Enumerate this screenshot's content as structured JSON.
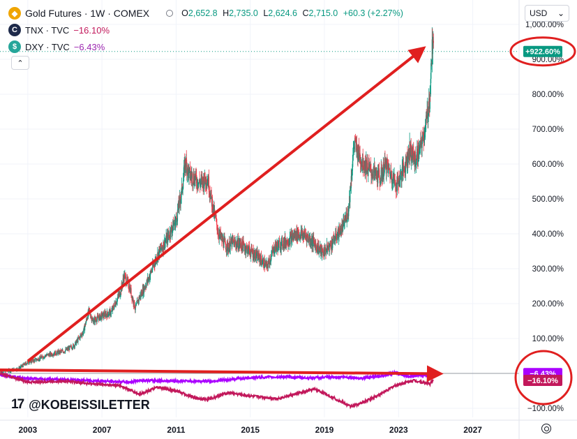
{
  "header": {
    "title": "Gold Futures · 1W · COMEX",
    "ohlc": [
      {
        "key": "O",
        "value": "2,652.8"
      },
      {
        "key": "H",
        "value": "2,735.0"
      },
      {
        "key": "L",
        "value": "2,624.6"
      },
      {
        "key": "C",
        "value": "2,715.0"
      }
    ],
    "change": "+60.3 (+2.27%)",
    "currency": "USD",
    "collapse_glyph": "⌃"
  },
  "legend": [
    {
      "icon_letter": "C",
      "name": "TNX · TVC",
      "value": "−16.10%",
      "color": "#c2185b",
      "icon_bg": "#1e2a4a"
    },
    {
      "icon_letter": "$",
      "name": "DXY · TVC",
      "value": "−6.43%",
      "color": "#9c27b0",
      "icon_bg": "#26a69a"
    }
  ],
  "watermark": "@KOBEISSILETTER",
  "colors": {
    "up": "#089981",
    "down": "#f23645",
    "tnx": "#c2185b",
    "dxy": "#aa00ff",
    "arrow": "#e01f1f",
    "grid": "#f0f3fa",
    "axis_text": "#131722"
  },
  "chart_data": {
    "type": "line",
    "title": "Gold Futures · 1W · COMEX",
    "y_axis_unit": "%",
    "ylim": [
      -110,
      1010
    ],
    "xlim": [
      2001.5,
      2029.5
    ],
    "x_ticks": [
      "2003",
      "2007",
      "2011",
      "2015",
      "2019",
      "2023",
      "2027"
    ],
    "y_ticks": [
      "−100.00%",
      "100.00%",
      "200.00%",
      "300.00%",
      "400.00%",
      "500.00%",
      "600.00%",
      "700.00%",
      "800.00%",
      "900.00%",
      "1,000.00%"
    ],
    "series": [
      {
        "name": "Gold Futures",
        "style": "candles",
        "last_label": "+922.60%",
        "x": [
          2001.5,
          2002.0,
          2002.5,
          2003.0,
          2003.5,
          2004.0,
          2004.5,
          2005.0,
          2005.5,
          2006.0,
          2006.3,
          2006.5,
          2007.0,
          2007.5,
          2008.0,
          2008.2,
          2008.5,
          2008.8,
          2009.0,
          2009.5,
          2010.0,
          2010.5,
          2011.0,
          2011.3,
          2011.5,
          2011.7,
          2012.0,
          2012.3,
          2012.7,
          2013.0,
          2013.3,
          2013.5,
          2013.8,
          2014.0,
          2014.5,
          2015.0,
          2015.5,
          2015.9,
          2016.3,
          2016.6,
          2017.0,
          2017.5,
          2018.0,
          2018.5,
          2018.9,
          2019.3,
          2019.6,
          2020.0,
          2020.3,
          2020.6,
          2021.0,
          2021.5,
          2022.0,
          2022.3,
          2022.6,
          2022.9,
          2023.3,
          2023.6,
          2023.9,
          2024.2,
          2024.5,
          2024.7,
          2024.8,
          2024.9
        ],
        "values": [
          5,
          8,
          14,
          32,
          40,
          52,
          58,
          65,
          80,
          120,
          180,
          150,
          165,
          175,
          235,
          280,
          245,
          185,
          215,
          270,
          340,
          385,
          440,
          520,
          610,
          570,
          560,
          545,
          560,
          470,
          400,
          380,
          360,
          375,
          370,
          350,
          330,
          305,
          360,
          370,
          380,
          400,
          395,
          370,
          345,
          365,
          390,
          420,
          470,
          660,
          610,
          580,
          560,
          600,
          570,
          540,
          590,
          640,
          610,
          650,
          720,
          800,
          930,
          922.6
        ]
      },
      {
        "name": "DXY · TVC",
        "style": "line",
        "last_label": "−6.43%",
        "x": [
          2001.5,
          2003.0,
          2005.0,
          2007.0,
          2008.5,
          2009.0,
          2011.0,
          2013.0,
          2015.0,
          2017.0,
          2018.0,
          2020.0,
          2021.0,
          2022.0,
          2022.8,
          2023.5,
          2024.5,
          2024.9
        ],
        "values": [
          -3,
          -15,
          -18,
          -22,
          -25,
          -20,
          -22,
          -22,
          -12,
          -10,
          -13,
          -10,
          -14,
          -8,
          2,
          -8,
          -5,
          -6.43
        ]
      },
      {
        "name": "TNX · TVC",
        "style": "line",
        "last_label": "−16.10%",
        "x": [
          2001.5,
          2003.0,
          2005.0,
          2006.5,
          2008.0,
          2009.0,
          2010.0,
          2011.0,
          2012.0,
          2012.7,
          2013.8,
          2015.0,
          2016.5,
          2018.5,
          2019.5,
          2020.4,
          2021.0,
          2022.0,
          2022.8,
          2023.8,
          2024.7,
          2024.9
        ],
        "values": [
          0,
          -25,
          -22,
          -30,
          -35,
          -60,
          -40,
          -50,
          -70,
          -75,
          -55,
          -65,
          -72,
          -45,
          -70,
          -95,
          -85,
          -60,
          -35,
          -20,
          -30,
          -16.1
        ]
      }
    ],
    "annotations": [
      {
        "type": "arrow",
        "from": [
          2003.0,
          35
        ],
        "to": [
          2024.3,
          930
        ]
      },
      {
        "type": "arrow",
        "from": [
          2001.5,
          10
        ],
        "to": [
          2025.2,
          -1
        ]
      },
      {
        "type": "circle",
        "around": "+922.60%"
      },
      {
        "type": "circle",
        "around": "−6.43% / −16.10%"
      }
    ]
  }
}
